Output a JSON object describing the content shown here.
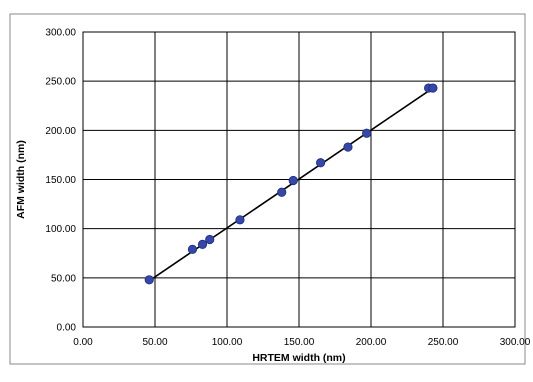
{
  "chart_data": {
    "type": "scatter",
    "xlabel": "HRTEM width (nm)",
    "ylabel": "AFM width (nm)",
    "xlim": [
      0,
      300
    ],
    "ylim": [
      0,
      300
    ],
    "x_ticks": [
      "0.00",
      "50.00",
      "100.00",
      "150.00",
      "200.00",
      "250.00",
      "300.00"
    ],
    "y_ticks": [
      "0.00",
      "50.00",
      "100.00",
      "150.00",
      "200.00",
      "250.00",
      "300.00"
    ],
    "grid": true,
    "series": [
      {
        "points": [
          {
            "x": 46,
            "y": 48
          },
          {
            "x": 76,
            "y": 79
          },
          {
            "x": 83,
            "y": 84
          },
          {
            "x": 88,
            "y": 89
          },
          {
            "x": 109,
            "y": 109
          },
          {
            "x": 138,
            "y": 137
          },
          {
            "x": 146,
            "y": 149
          },
          {
            "x": 165,
            "y": 167
          },
          {
            "x": 184,
            "y": 183
          },
          {
            "x": 197,
            "y": 197
          },
          {
            "x": 240,
            "y": 243
          },
          {
            "x": 243,
            "y": 243
          }
        ],
        "marker_color": "#3548a8"
      }
    ],
    "trendline": {
      "x": [
        46,
        243
      ],
      "y": [
        47,
        243
      ],
      "color": "#000000"
    }
  }
}
